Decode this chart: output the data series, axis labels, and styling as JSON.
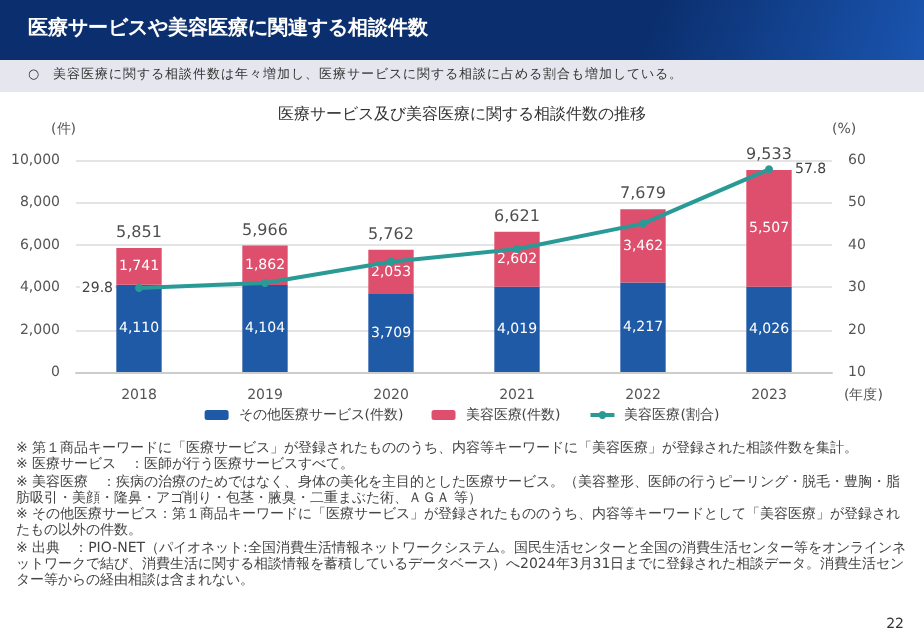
{
  "chart_data": {
    "type": "bar",
    "title": "医療サービスや美容医療に関連する相談件数",
    "subtitle": "医療サービス及び美容医療に関する相談件数の推移",
    "annotations": [
      "○　美容医療に関する相談件数は年々増加し、医療サービスに関する相談に占める割合も増加している。",
      "※ 第１商品キーワードに「医療サービス」が登録されたもののうち、内容等キーワードに「美容医療」が登録された相談件数を集計。",
      "※ 医療サービス　：医師が行う医療サービスすべて。",
      "※ 美容医療　：疾病の治療のためではなく、身体の美化を主目的とした医療サービス。（美容整形、医師の行うピーリング・脱毛・豊胸・脂肪吸引・美顔・隆鼻・アゴ削り・包茎・腋臭・二重まぶた術、ＡＧＡ 等）",
      "※ その他医療サービス：第１商品キーワードに「医療サービス」が登録されたもののうち、内容等キーワードとして「美容医療」が登録されたもの以外の件数。",
      "※ 出典　：PIO-NET（パイオネット:全国消費生活情報ネットワークシステム。国民生活センターと全国の消費生活センター等をオンラインネットワークで結び、消費生活に関する相談情報を蓄積しているデータベース）へ2024年3月31日までに登録された相談データ。消費生活センター等からの経由相談は含まれない。",
      "22"
    ],
    "xlabel": "(年度)",
    "ylabel": "(件)",
    "y2label": "(%)",
    "categories": [
      "2018",
      "2019",
      "2020",
      "2021",
      "2022",
      "2023"
    ],
    "stacked": true,
    "series": [
      {
        "name": "その他医療サービス(件数)",
        "color": "#1f5aa6",
        "values": [
          4110,
          4104,
          3709,
          4019,
          4217,
          4026
        ],
        "value_labels": [
          "4,110",
          "4,104",
          "3,709",
          "4,019",
          "4,217",
          "4,026"
        ]
      },
      {
        "name": "美容医療(件数)",
        "color": "#dd4f6c",
        "values": [
          1741,
          1862,
          2053,
          2602,
          3462,
          5507
        ],
        "value_labels": [
          "1,741",
          "1,862",
          "2,053",
          "2,602",
          "3,462",
          "5,507"
        ]
      },
      {
        "name": "美容医療(割合)",
        "type": "line",
        "axis": "y2",
        "color": "#2a9a96",
        "values": [
          29.8,
          31,
          36,
          39,
          45,
          57.8
        ],
        "value_labels": [
          "29.8",
          null,
          null,
          null,
          null,
          "57.8"
        ]
      }
    ],
    "totals": [
      "5,851",
      "5,966",
      "5,762",
      "6,621",
      "7,679",
      "9,533"
    ],
    "ylim": [
      0,
      10000
    ],
    "yticks": [
      0,
      {
        "value": 2000,
        "label": "2,000"
      },
      {
        "value": 4000,
        "label": "4,000"
      },
      {
        "value": 6000,
        "label": "6,000"
      },
      {
        "value": 8000,
        "label": "8,000"
      },
      {
        "value": 10000,
        "label": "10,000"
      }
    ],
    "y2lim": [
      10,
      60
    ],
    "y2ticks": [
      10,
      20,
      30,
      40,
      50,
      60
    ],
    "grid": "y",
    "legend": "bottom",
    "marker": "circle"
  }
}
